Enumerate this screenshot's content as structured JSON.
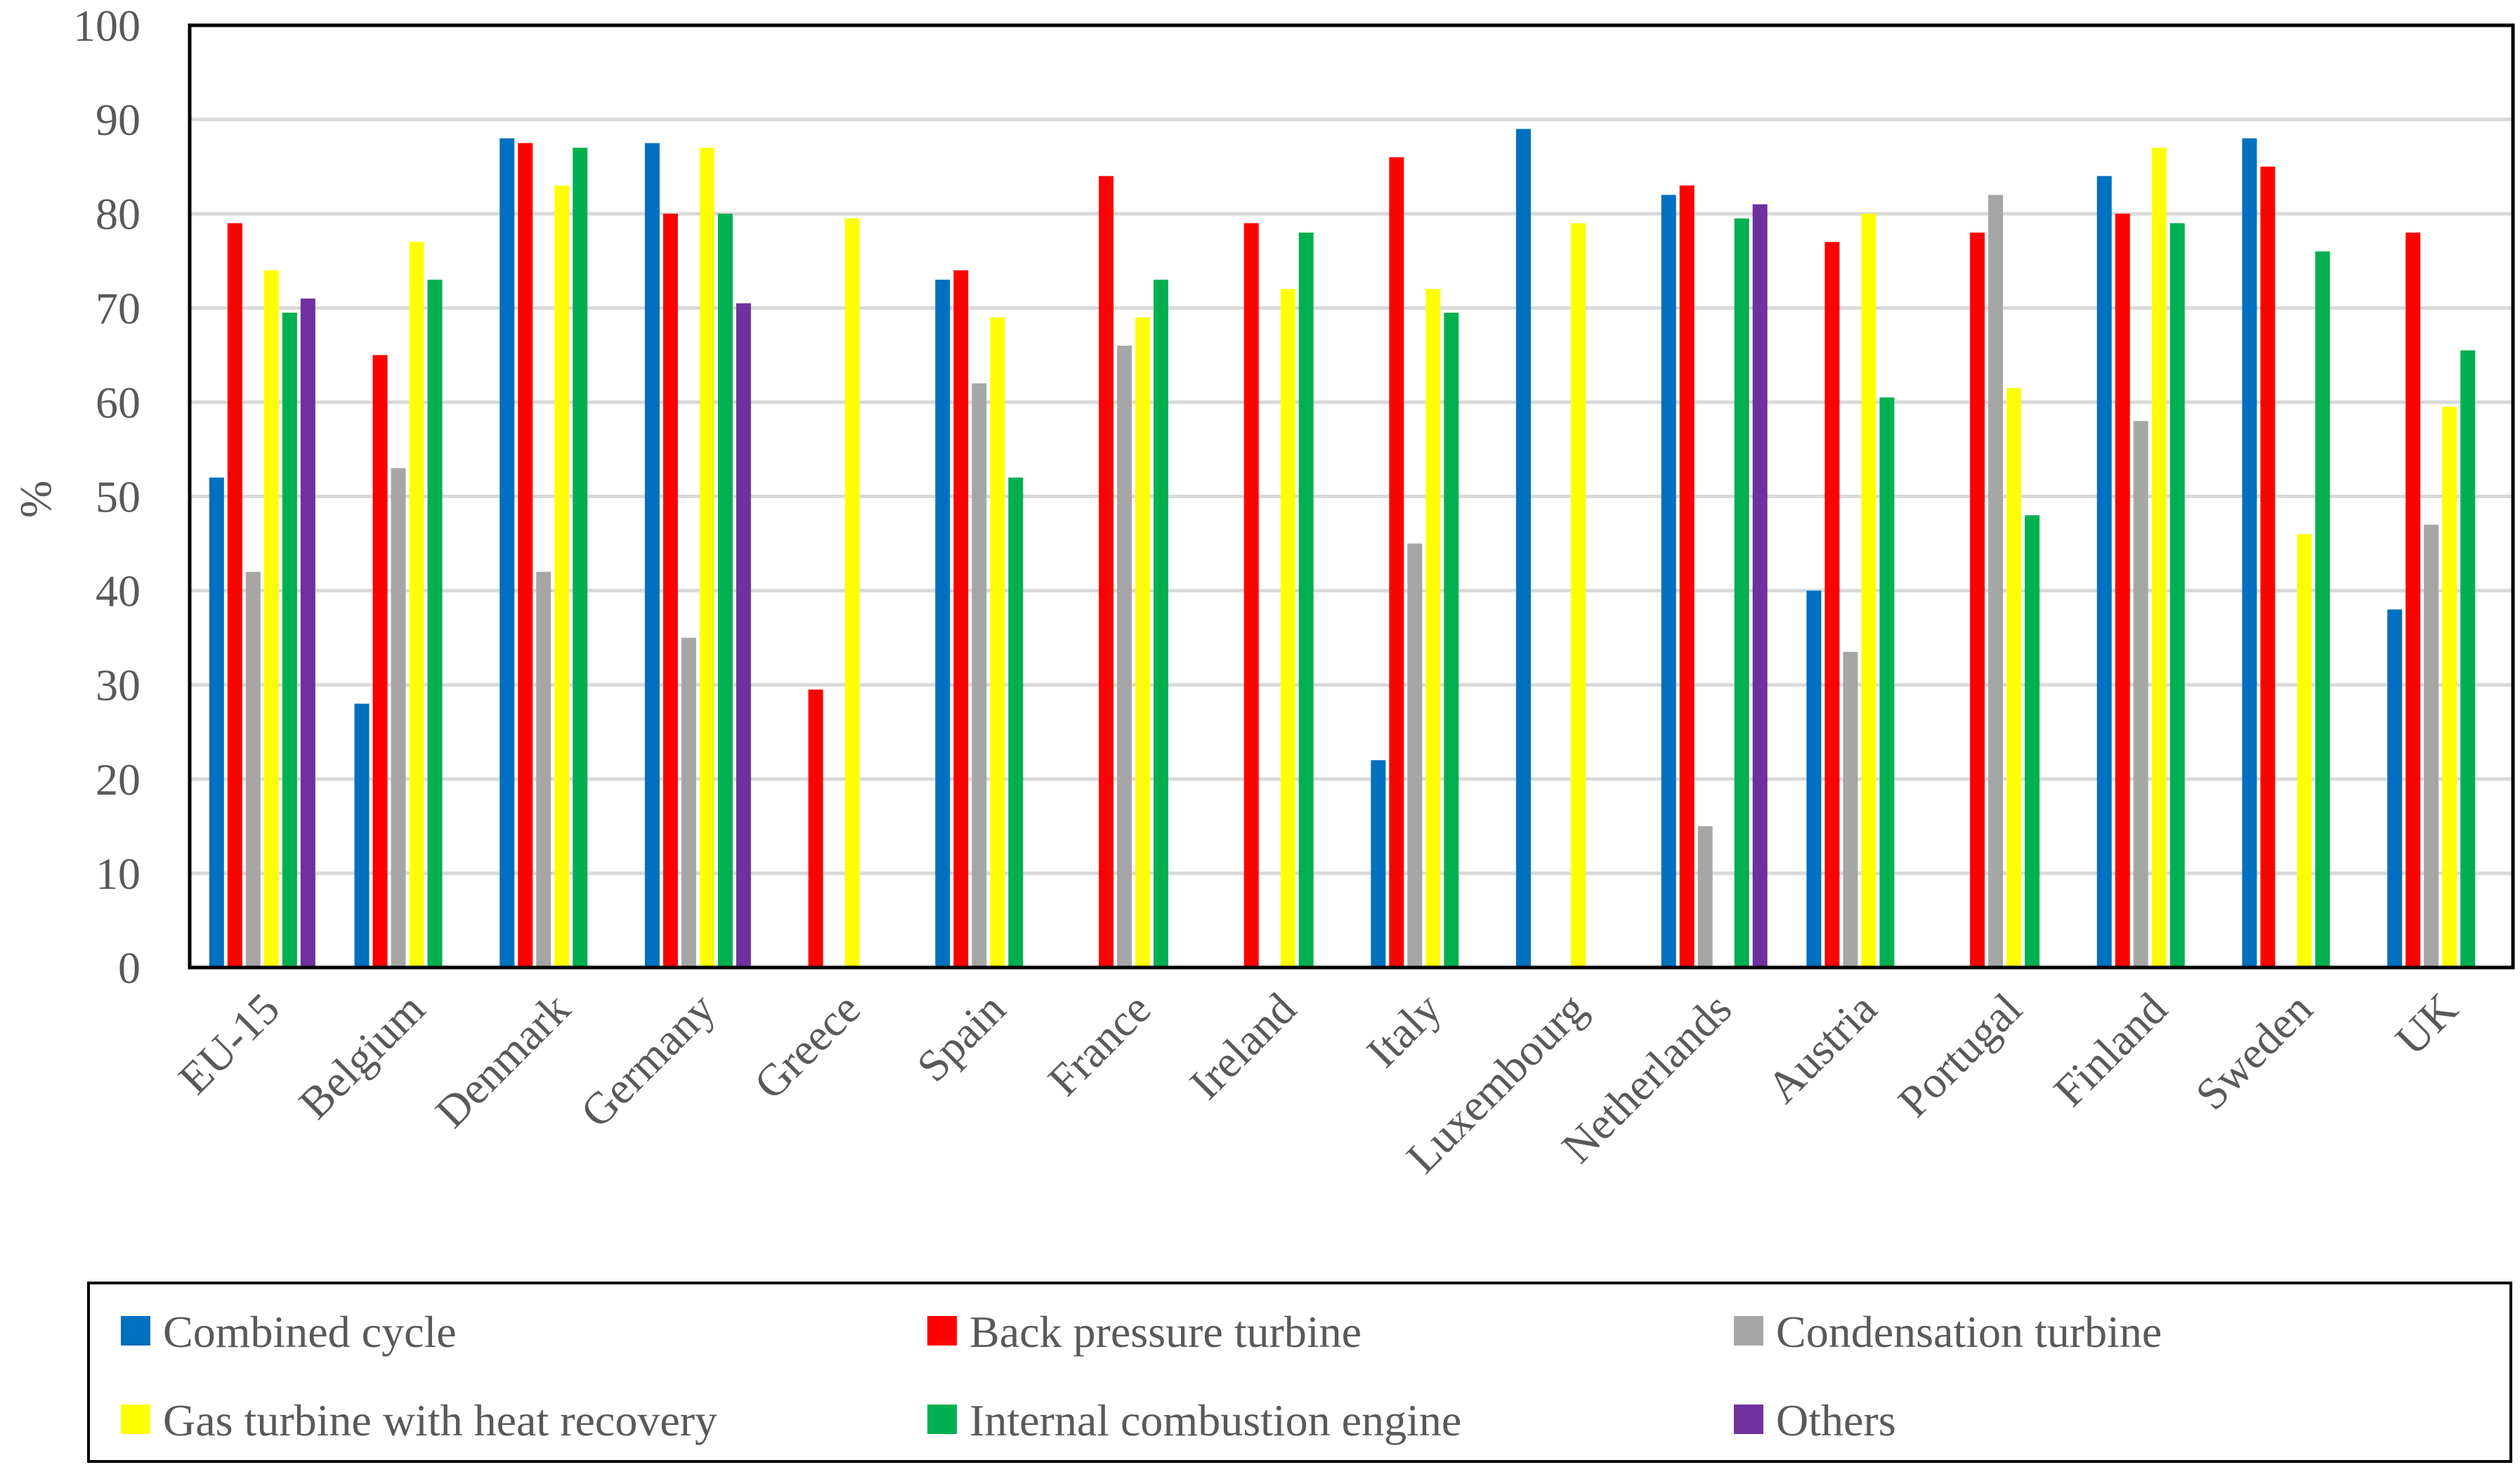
{
  "chart_data": {
    "type": "bar",
    "title": "",
    "xlabel": "",
    "ylabel": "%",
    "ylim": [
      0,
      100
    ],
    "yticks": [
      0,
      10,
      20,
      30,
      40,
      50,
      60,
      70,
      80,
      90,
      100
    ],
    "grid": true,
    "legend_position": "bottom",
    "categories": [
      "EU-15",
      "Belgium",
      "Denmark",
      "Germany",
      "Greece",
      "Spain",
      "France",
      "Ireland",
      "Italy",
      "Luxembourg",
      "Netherlands",
      "Austria",
      "Portugal",
      "Finland",
      "Sweden",
      "UK"
    ],
    "series": [
      {
        "name": "Combined cycle",
        "color": "#0070C0",
        "values": [
          52,
          28,
          88,
          87.5,
          null,
          73,
          null,
          null,
          22,
          89,
          82,
          40,
          null,
          84,
          88,
          38
        ]
      },
      {
        "name": "Back pressure turbine",
        "color": "#FF0000",
        "values": [
          79,
          65,
          87.5,
          80,
          29.5,
          74,
          84,
          79,
          86,
          null,
          83,
          77,
          78,
          80,
          85,
          78
        ]
      },
      {
        "name": "Condensation turbine",
        "color": "#A6A6A6",
        "values": [
          42,
          53,
          42,
          35,
          null,
          62,
          66,
          null,
          45,
          null,
          15,
          33.5,
          82,
          58,
          null,
          47
        ]
      },
      {
        "name": "Gas turbine with heat recovery",
        "color": "#FFFF00",
        "values": [
          74,
          77,
          83,
          87,
          79.5,
          69,
          69,
          72,
          72,
          79,
          null,
          80,
          61.5,
          87,
          46,
          59.5
        ]
      },
      {
        "name": "Internal combustion engine",
        "color": "#00B050",
        "values": [
          69.5,
          73,
          87,
          80,
          null,
          52,
          73,
          78,
          69.5,
          null,
          79.5,
          60.5,
          48,
          79,
          76,
          65.5
        ]
      },
      {
        "name": "Others",
        "color": "#7030A0",
        "values": [
          71,
          null,
          null,
          70.5,
          null,
          null,
          null,
          null,
          null,
          null,
          81,
          null,
          null,
          null,
          null,
          null
        ]
      }
    ]
  }
}
